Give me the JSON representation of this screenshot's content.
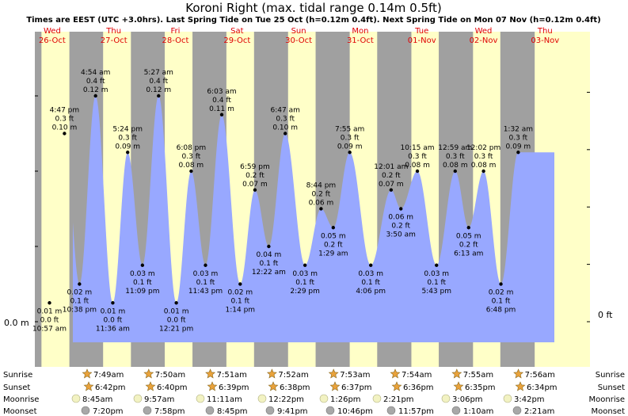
{
  "title": "Koroni Right (max. tidal range 0.14m 0.5ft)",
  "subtitle": "Times are EEST (UTC +3.0hrs). Last Spring Tide on Tue 25 Oct (h=0.12m 0.4ft). Next Spring Tide on Mon 07 Nov (h=0.12m 0.4ft)",
  "colors": {
    "night": "#a0a0a0",
    "day": "#ffffc8",
    "tide": "#98a8ff",
    "day_label": "#e00000",
    "star": "#e9a23b",
    "moon": "#f2f2c2"
  },
  "chart_data": {
    "type": "area",
    "y_left_label": "0.0 m",
    "y_right_label": "0 ft",
    "days": [
      {
        "dow": "Wed",
        "date": "26-Oct"
      },
      {
        "dow": "Thu",
        "date": "27-Oct"
      },
      {
        "dow": "Fri",
        "date": "28-Oct"
      },
      {
        "dow": "Sat",
        "date": "29-Oct"
      },
      {
        "dow": "Sun",
        "date": "30-Oct"
      },
      {
        "dow": "Mon",
        "date": "31-Oct"
      },
      {
        "dow": "Tue",
        "date": "01-Nov"
      },
      {
        "dow": "Wed",
        "date": "02-Nov"
      },
      {
        "dow": "Thu",
        "date": "03-Nov"
      }
    ],
    "tides": [
      {
        "time": "10:57 am",
        "m": "0.01 m",
        "ft": "0.0 ft",
        "type": "low"
      },
      {
        "time": "4:47 pm",
        "m": "0.10 m",
        "ft": "0.3 ft",
        "type": "high"
      },
      {
        "time": "10:38 pm",
        "m": "0.02 m",
        "ft": "0.1 ft",
        "type": "low"
      },
      {
        "time": "4:54 am",
        "m": "0.12 m",
        "ft": "0.4 ft",
        "type": "high"
      },
      {
        "time": "11:36 am",
        "m": "0.01 m",
        "ft": "0.0 ft",
        "type": "low"
      },
      {
        "time": "5:24 pm",
        "m": "0.09 m",
        "ft": "0.3 ft",
        "type": "high"
      },
      {
        "time": "11:09 pm",
        "m": "0.03 m",
        "ft": "0.1 ft",
        "type": "low"
      },
      {
        "time": "5:27 am",
        "m": "0.12 m",
        "ft": "0.4 ft",
        "type": "high"
      },
      {
        "time": "12:21 pm",
        "m": "0.01 m",
        "ft": "0.0 ft",
        "type": "low"
      },
      {
        "time": "6:08 pm",
        "m": "0.08 m",
        "ft": "0.3 ft",
        "type": "high"
      },
      {
        "time": "11:43 pm",
        "m": "0.03 m",
        "ft": "0.1 ft",
        "type": "low"
      },
      {
        "time": "6:03 am",
        "m": "0.11 m",
        "ft": "0.4 ft",
        "type": "high"
      },
      {
        "time": "1:14 pm",
        "m": "0.02 m",
        "ft": "0.1 ft",
        "type": "low"
      },
      {
        "time": "6:59 pm",
        "m": "0.07 m",
        "ft": "0.2 ft",
        "type": "high"
      },
      {
        "time": "12:22 am",
        "m": "0.04 m",
        "ft": "0.1 ft",
        "type": "low"
      },
      {
        "time": "6:47 am",
        "m": "0.10 m",
        "ft": "0.3 ft",
        "type": "high"
      },
      {
        "time": "2:29 pm",
        "m": "0.03 m",
        "ft": "0.1 ft",
        "type": "low"
      },
      {
        "time": "8:44 pm",
        "m": "0.06 m",
        "ft": "0.2 ft",
        "type": "high"
      },
      {
        "time": "1:29 am",
        "m": "0.05 m",
        "ft": "0.2 ft",
        "type": "low"
      },
      {
        "time": "7:55 am",
        "m": "0.09 m",
        "ft": "0.3 ft",
        "type": "high"
      },
      {
        "time": "4:06 pm",
        "m": "0.03 m",
        "ft": "0.1 ft",
        "type": "low"
      },
      {
        "time": "12:01 am",
        "m": "0.07 m",
        "ft": "0.2 ft",
        "type": "high"
      },
      {
        "time": "3:50 am",
        "m": "0.06 m",
        "ft": "0.2 ft",
        "type": "low"
      },
      {
        "time": "10:15 am",
        "m": "0.08 m",
        "ft": "0.3 ft",
        "type": "high"
      },
      {
        "time": "5:43 pm",
        "m": "0.03 m",
        "ft": "0.1 ft",
        "type": "low"
      },
      {
        "time": "12:59 am",
        "m": "0.08 m",
        "ft": "0.3 ft",
        "type": "high"
      },
      {
        "time": "6:13 am",
        "m": "0.05 m",
        "ft": "0.2 ft",
        "type": "low"
      },
      {
        "time": "12:02 pm",
        "m": "0.08 m",
        "ft": "0.3 ft",
        "type": "high"
      },
      {
        "time": "6:48 pm",
        "m": "0.02 m",
        "ft": "0.1 ft",
        "type": "low"
      },
      {
        "time": "1:32 am",
        "m": "0.09 m",
        "ft": "0.3 ft",
        "type": "high"
      }
    ],
    "sunrise": [
      "7:49am",
      "7:50am",
      "7:51am",
      "7:52am",
      "7:53am",
      "7:54am",
      "7:55am",
      "7:56am"
    ],
    "sunset": [
      "6:42pm",
      "6:40pm",
      "6:39pm",
      "6:38pm",
      "6:37pm",
      "6:36pm",
      "6:35pm",
      "6:34pm"
    ],
    "moonrise": [
      "8:45am",
      "9:57am",
      "11:11am",
      "12:22pm",
      "1:26pm",
      "2:21pm",
      "3:06pm",
      "3:42pm"
    ],
    "moonset": [
      "7:20pm",
      "7:58pm",
      "8:45pm",
      "9:41pm",
      "10:46pm",
      "11:57pm",
      "1:10am",
      "2:21am"
    ],
    "row_labels": {
      "sunrise": "Sunrise",
      "sunset": "Sunset",
      "moonrise": "Moonrise",
      "moonset": "Moonset"
    }
  }
}
